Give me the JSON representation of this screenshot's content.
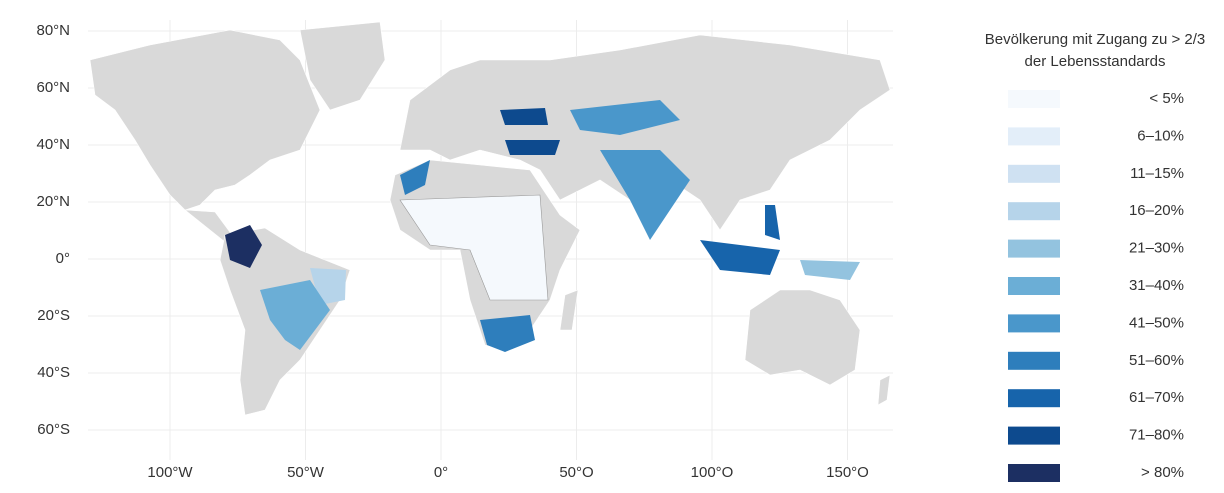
{
  "map": {
    "lat_ticks": [
      {
        "value": 80,
        "label": "80°N"
      },
      {
        "value": 60,
        "label": "60°N"
      },
      {
        "value": 40,
        "label": "40°N"
      },
      {
        "value": 20,
        "label": "20°N"
      },
      {
        "value": 0,
        "label": "0°"
      },
      {
        "value": -20,
        "label": "20°S"
      },
      {
        "value": -40,
        "label": "40°S"
      },
      {
        "value": -60,
        "label": "60°S"
      }
    ],
    "lon_ticks": [
      {
        "value": -100,
        "label": "100°W"
      },
      {
        "value": -50,
        "label": "50°W"
      },
      {
        "value": 0,
        "label": "0°"
      },
      {
        "value": 50,
        "label": "50°O"
      },
      {
        "value": 100,
        "label": "100°O"
      },
      {
        "value": 150,
        "label": "150°O"
      }
    ]
  },
  "legend": {
    "title": [
      "Bevölkerung mit Zugang zu > 2/3",
      "der Lebensstandards"
    ],
    "items": [
      {
        "label": "< 5%",
        "color": "#f5f9fd"
      },
      {
        "label": "6–10%",
        "color": "#e3eef9"
      },
      {
        "label": "11–15%",
        "color": "#cfe1f2"
      },
      {
        "label": "16–20%",
        "color": "#b6d4ea"
      },
      {
        "label": "21–30%",
        "color": "#93c3df"
      },
      {
        "label": "31–40%",
        "color": "#6baed6"
      },
      {
        "label": "41–50%",
        "color": "#4a97cb"
      },
      {
        "label": "51–60%",
        "color": "#2e7ebc"
      },
      {
        "label": "61–70%",
        "color": "#1764ab"
      },
      {
        "label": "71–80%",
        "color": "#0d4a8e"
      },
      {
        "label": "> 80%",
        "color": "#1c2f62"
      }
    ]
  }
}
